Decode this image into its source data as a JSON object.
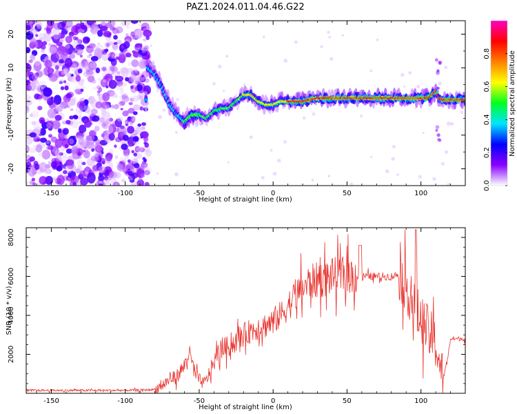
{
  "page": {
    "title": "PAZ1.2024.011.04.46.G22"
  },
  "chart_data": [
    {
      "type": "heatmap",
      "xlabel": "Height of straight line (km)",
      "ylabel": "Frequency (Hz)",
      "xlim": [
        -167,
        130
      ],
      "ylim": [
        -25,
        24
      ],
      "xticks": [
        -150,
        -100,
        -50,
        0,
        50,
        100
      ],
      "yticks": [
        -20,
        -10,
        0,
        10,
        20
      ],
      "ridge": {
        "x": [
          -85,
          -80,
          -75,
          -72,
          -70,
          -65,
          -60,
          -55,
          -50,
          -45,
          -40,
          -35,
          -30,
          -25,
          -20,
          -15,
          -10,
          -5,
          0,
          5,
          10,
          20,
          30,
          40,
          50,
          60,
          70,
          80,
          90,
          100,
          105,
          110,
          112,
          115,
          120,
          130
        ],
        "y": [
          10,
          8,
          4,
          1,
          -1,
          -4,
          -6,
          -4,
          -4,
          -5,
          -3,
          -2,
          -2,
          0,
          2,
          2,
          0,
          -1,
          -1,
          0,
          0,
          0,
          1,
          1,
          1,
          1,
          1,
          1,
          1,
          1,
          1,
          3,
          1,
          0.5,
          0.5,
          0.5
        ]
      },
      "colorbar": {
        "label": "Normalized spectral amplitude",
        "range": [
          0,
          1
        ],
        "ticks": [
          "0.0",
          "0.2",
          "0.4",
          "0.6",
          "0.8"
        ],
        "colors": [
          "#ffffff",
          "#8a00ff",
          "#0000ff",
          "#00e5ff",
          "#00ff20",
          "#ffff00",
          "#ff8000",
          "#ff0000",
          "#ff00c0"
        ]
      },
      "grid": false
    },
    {
      "type": "line",
      "xlabel": "Height of straight line (km)",
      "ylabel": "SNR (10 * v/v)",
      "xlim": [
        -167,
        130
      ],
      "ylim": [
        0,
        8500
      ],
      "xticks": [
        -150,
        -100,
        -50,
        0,
        50,
        100
      ],
      "yticks": [
        2000,
        4000,
        6000,
        8000
      ],
      "line_color": "#e8302a",
      "x": [
        -167,
        -140,
        -110,
        -90,
        -80,
        -75,
        -70,
        -65,
        -60,
        -57,
        -55,
        -52,
        -50,
        -47,
        -45,
        -40,
        -35,
        -30,
        -25,
        -20,
        -15,
        -10,
        -5,
        0,
        5,
        10,
        15,
        20,
        25,
        30,
        35,
        40,
        45,
        50,
        55,
        60,
        65,
        70,
        75,
        80,
        85,
        90,
        95,
        100,
        105,
        110,
        113,
        115,
        118,
        120,
        125,
        130
      ],
      "y": [
        150,
        150,
        150,
        160,
        200,
        400,
        700,
        900,
        1400,
        2100,
        1600,
        900,
        700,
        500,
        700,
        1600,
        2300,
        2400,
        2700,
        3000,
        3200,
        3400,
        3500,
        3700,
        4000,
        4500,
        5000,
        5400,
        5700,
        5800,
        5900,
        6000,
        6050,
        6100,
        6050,
        6000,
        6000,
        6000,
        6000,
        6000,
        6100,
        5500,
        4500,
        3800,
        3200,
        2500,
        1500,
        700,
        1800,
        2800,
        2800,
        2800
      ],
      "grid": false
    }
  ]
}
